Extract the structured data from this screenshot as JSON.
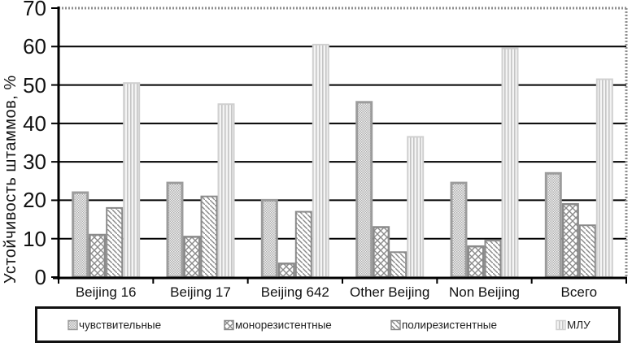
{
  "chart_data": {
    "type": "bar",
    "title": "",
    "ylabel": "Устойчивость штаммов, %",
    "xlabel": "",
    "ylim": [
      0,
      70
    ],
    "ytick_step": 10,
    "ytick_labels": [
      "0",
      "10",
      "20",
      "30",
      "40",
      "50",
      "60",
      "70"
    ],
    "grid": "horizontal solid black lines every 10; top and right plot borders dotted gray",
    "legend_position": "bottom, boxed, horizontal",
    "categories": [
      "Beijing 16",
      "Beijing 17",
      "Beijing 642",
      "Other Beijing",
      "Non Beijing",
      "Всего"
    ],
    "series": [
      {
        "name": "чувствительные",
        "pattern": "checker",
        "values": [
          22,
          24.5,
          20,
          45.5,
          24.5,
          27
        ]
      },
      {
        "name": "монорезистентные",
        "pattern": "diamond-crosshatch",
        "values": [
          11,
          10.5,
          3.5,
          13,
          8,
          19
        ]
      },
      {
        "name": "полирезистентные",
        "pattern": "diagonal-lines",
        "values": [
          18,
          21,
          17,
          6.5,
          9.5,
          13.5
        ]
      },
      {
        "name": "МЛУ",
        "pattern": "vertical-lines",
        "values": [
          50.5,
          45,
          60.5,
          36.5,
          59.5,
          51.5
        ]
      }
    ],
    "colors": {
      "axis": "#000000",
      "gridline": "#000000",
      "dotted_border": "#8f8f8f",
      "checker_dot": "#b0b0b0",
      "checker_bg": "#f0f0f0",
      "checker_border": "#9c9c9c",
      "hatch_line": "#8a8a8a",
      "vline_stripe": "#c4c4c4",
      "vline_bg": "#f4f4f4",
      "vline_border": "#d0d0d0",
      "text": "#111111"
    }
  }
}
